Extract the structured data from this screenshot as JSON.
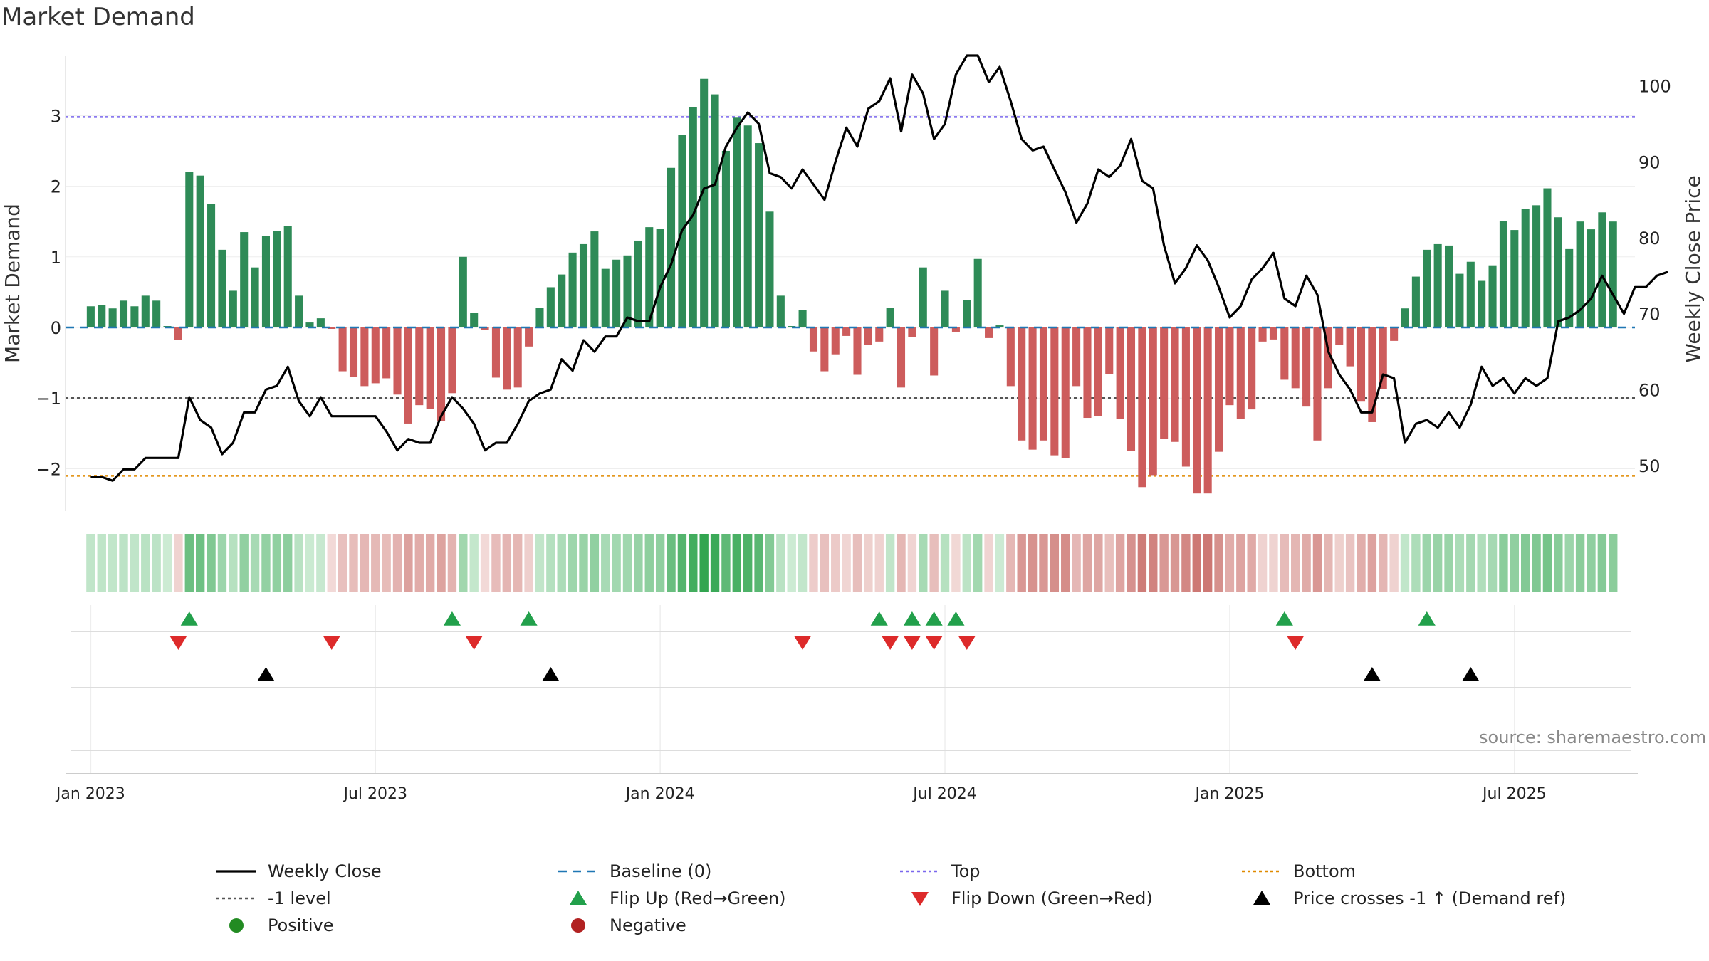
{
  "chart_data": {
    "type": "bar",
    "title": "Market Demand",
    "ylabel_left": "Market Demand",
    "ylabel_right": "Weekly Close Price",
    "ylim_left": [
      -2.6,
      3.85
    ],
    "ylim_right": [
      44,
      104
    ],
    "y_ticks_left": [
      3,
      2,
      1,
      0,
      -1,
      -2
    ],
    "y_ticks_right": [
      100,
      90,
      80,
      70,
      60,
      50
    ],
    "x_tick_labels": [
      "Jan 2023",
      "Jul 2023",
      "Jan 2024",
      "Jul 2024",
      "Jan 2025",
      "Jul 2025"
    ],
    "x_tick_weeks": [
      0,
      26,
      52,
      78,
      104,
      130
    ],
    "week_range": [
      -2.3,
      141
    ],
    "reference_lines": {
      "top": 2.98,
      "minus_one": -1,
      "bottom": -2.1,
      "baseline": 0
    },
    "demand": [
      0.3,
      0.32,
      0.27,
      0.38,
      0.3,
      0.45,
      0.38,
      0.02,
      -0.18,
      2.2,
      2.15,
      1.75,
      1.1,
      0.52,
      1.35,
      0.85,
      1.3,
      1.37,
      1.44,
      0.45,
      0.07,
      0.13,
      -0.02,
      -0.62,
      -0.7,
      -0.83,
      -0.79,
      -0.72,
      -0.95,
      -1.36,
      -1.1,
      -1.15,
      -1.33,
      -0.93,
      1.0,
      0.21,
      -0.03,
      -0.71,
      -0.88,
      -0.85,
      -0.27,
      0.28,
      0.57,
      0.75,
      1.06,
      1.18,
      1.36,
      0.83,
      0.96,
      1.02,
      1.23,
      1.42,
      1.4,
      2.26,
      2.73,
      3.12,
      3.52,
      3.3,
      2.5,
      2.97,
      2.86,
      2.61,
      1.64,
      0.45,
      0.02,
      0.25,
      -0.34,
      -0.62,
      -0.38,
      -0.12,
      -0.67,
      -0.25,
      -0.2,
      0.28,
      -0.85,
      -0.14,
      0.85,
      -0.68,
      0.52,
      -0.06,
      0.39,
      0.97,
      -0.15,
      0.03,
      -0.83,
      -1.6,
      -1.73,
      -1.6,
      -1.81,
      -1.85,
      -0.83,
      -1.28,
      -1.25,
      -0.66,
      -1.29,
      -1.75,
      -2.26,
      -2.09,
      -1.58,
      -1.62,
      -1.97,
      -2.35,
      -2.35,
      -1.76,
      -1.1,
      -1.29,
      -1.16,
      -0.2,
      -0.17,
      -0.74,
      -0.86,
      -1.12,
      -1.6,
      -0.86,
      -0.25,
      -0.55,
      -1.05,
      -1.34,
      -0.87,
      -0.19,
      0.27,
      0.72,
      1.1,
      1.18,
      1.16,
      0.76,
      0.93,
      0.66,
      0.88,
      1.51,
      1.38,
      1.68,
      1.73,
      1.97,
      1.56,
      1.11,
      1.5,
      1.39,
      1.63,
      1.5
    ],
    "weekly_close": [
      48.5,
      48.5,
      48,
      49.5,
      49.5,
      51,
      51,
      51,
      51,
      59,
      56,
      55,
      51.5,
      53,
      57,
      57,
      60,
      60.5,
      63,
      58.5,
      56.5,
      59,
      56.5,
      56.5,
      56.5,
      56.5,
      56.5,
      54.5,
      52,
      53.5,
      53,
      53,
      56.5,
      59,
      57.5,
      55.5,
      52,
      53,
      53,
      55.5,
      58.5,
      59.5,
      60,
      64,
      62.5,
      66.5,
      65,
      67,
      67,
      69.5,
      69,
      69,
      73.5,
      76.5,
      81,
      83,
      86.5,
      87,
      92,
      94.5,
      96.5,
      95,
      88.5,
      88,
      86.5,
      89,
      87,
      85,
      90,
      94.5,
      92,
      97,
      98,
      101,
      94,
      101.5,
      99,
      93,
      95,
      101.5,
      104,
      104,
      100.5,
      102.5,
      98,
      93,
      91.5,
      92,
      89,
      86,
      82,
      84.5,
      89,
      88,
      89.5,
      93,
      87.5,
      86.5,
      79,
      74,
      76,
      79,
      77,
      73.5,
      69.5,
      71,
      74.5,
      76,
      78,
      72,
      71,
      75,
      72.5,
      65,
      62,
      60,
      57,
      57,
      62,
      61.5,
      53,
      55.5,
      56,
      55,
      57,
      55,
      58,
      63,
      60.5,
      61.5,
      59.5,
      61.5,
      60.5,
      61.5,
      69,
      69.5,
      70.5,
      72,
      75,
      72.5,
      70,
      73.5,
      73.5,
      75,
      75.5
    ],
    "flip_up_weeks": [
      9,
      33,
      40,
      72,
      75,
      77,
      79,
      109,
      122
    ],
    "flip_down_weeks": [
      8,
      22,
      35,
      65,
      73,
      75,
      77,
      80,
      110
    ],
    "price_cross_weeks": [
      16,
      42,
      117,
      126
    ]
  },
  "source_text": "source: sharemaestro.com",
  "legend": [
    {
      "icon": "line-solid-black",
      "label": "Weekly Close"
    },
    {
      "icon": "line-dash-blue",
      "label": "Baseline (0)"
    },
    {
      "icon": "line-dot-purple",
      "label": "Top"
    },
    {
      "icon": "line-dot-orange",
      "label": "Bottom"
    },
    {
      "icon": "line-dot-grey",
      "label": "-1 level"
    },
    {
      "icon": "triangle-up-green",
      "label": "Flip Up (Red→Green)"
    },
    {
      "icon": "triangle-down-red",
      "label": "Flip Down (Green→Red)"
    },
    {
      "icon": "triangle-up-black",
      "label": "Price crosses -1 ↑ (Demand ref)"
    },
    {
      "icon": "circle-green",
      "label": "Positive"
    },
    {
      "icon": "circle-red",
      "label": "Negative"
    }
  ],
  "colors": {
    "positive_bar": "#2e8b57",
    "negative_bar": "#cd5c5c",
    "price_line": "#000000",
    "top_line": "#7b68ee",
    "bottom_line": "#e08a00",
    "minus_one_line": "#555555",
    "baseline": "#1f77b4",
    "flip_up": "#22a04b",
    "flip_down": "#dd2a2a",
    "cross_marker": "#000000",
    "positive_dot": "#228b22",
    "negative_dot": "#b22222"
  }
}
